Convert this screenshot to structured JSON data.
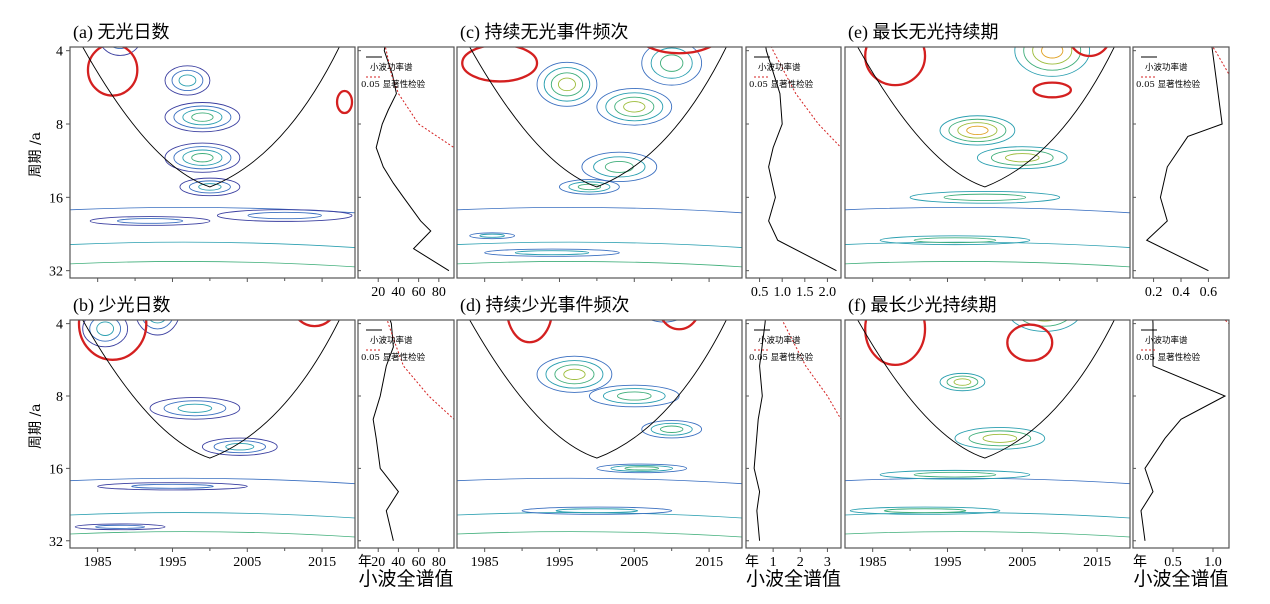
{
  "labels": {
    "ylabel": "周期 /a",
    "xunit": "年",
    "spec_label": "小波全谱值",
    "legend_power": "小波功率谱",
    "legend_sig": "0.05 显著性检验"
  },
  "colors": {
    "sig": "#d42020",
    "coi": "#000000",
    "contours": [
      "#3b3fa0",
      "#3a6fc0",
      "#2a9fb0",
      "#3fae7a",
      "#9cbc3a",
      "#e0a020"
    ]
  },
  "chart_data": [
    {
      "type": "contour",
      "id": "a",
      "title": "(a) 无光日数",
      "xlim": [
        1981.3,
        2019.4
      ],
      "xticks": [
        1985,
        1995,
        2005,
        2015
      ],
      "yticks": [
        4,
        8,
        16,
        32
      ],
      "blobs": [
        [
          1996,
          3,
          4,
          0.35,
          3
        ],
        [
          1988,
          3.4,
          3,
          0.3,
          2
        ],
        [
          1997,
          5.3,
          3,
          0.2,
          2
        ],
        [
          1999,
          7.5,
          5,
          0.2,
          3
        ],
        [
          1999,
          11,
          5,
          0.2,
          3
        ],
        [
          2000,
          14.5,
          4,
          0.12,
          2
        ],
        [
          1992,
          20,
          8,
          0.06,
          1
        ],
        [
          2010,
          19,
          9,
          0.08,
          1
        ]
      ],
      "sig": [
        [
          1987,
          4.8,
          3.3,
          0.35
        ],
        [
          2003,
          2.5,
          2,
          0.2
        ],
        [
          2017,
          2.3,
          2,
          0.2
        ],
        [
          2018,
          6.5,
          1,
          0.15
        ]
      ],
      "spec_xlim": [
        0,
        95
      ],
      "spec_xticks": [
        20,
        40,
        60,
        80
      ],
      "spectrum": [
        [
          2,
          33
        ],
        [
          3,
          30
        ],
        [
          4,
          26
        ],
        [
          5,
          34
        ],
        [
          6,
          38
        ],
        [
          7,
          30
        ],
        [
          8,
          24
        ],
        [
          10,
          18
        ],
        [
          12,
          25
        ],
        [
          14,
          35
        ],
        [
          16,
          45
        ],
        [
          20,
          62
        ],
        [
          22,
          72
        ],
        [
          26,
          55
        ],
        [
          32,
          90
        ]
      ],
      "significance": [
        [
          2,
          12
        ],
        [
          3,
          20
        ],
        [
          4,
          28
        ],
        [
          5,
          33
        ],
        [
          6,
          40
        ],
        [
          8,
          60
        ],
        [
          10,
          95
        ]
      ]
    },
    {
      "type": "contour",
      "id": "c",
      "title": "(c) 持续无光事件频次",
      "xlim": [
        1981.3,
        2019.4
      ],
      "xticks": [
        1985,
        1995,
        2005,
        2015
      ],
      "yticks": [
        4,
        8,
        16,
        32
      ],
      "blobs": [
        [
          1996,
          5.5,
          4,
          0.3,
          3
        ],
        [
          2005,
          6.8,
          5,
          0.25,
          3
        ],
        [
          2010,
          4.5,
          4,
          0.3,
          2
        ],
        [
          2003,
          12,
          5,
          0.2,
          2
        ],
        [
          1999,
          14.5,
          4,
          0.1,
          2
        ],
        [
          1986,
          23,
          3,
          0.04,
          1
        ],
        [
          1994,
          27,
          9,
          0.05,
          1
        ]
      ],
      "sig": [
        [
          1987,
          4.5,
          5,
          0.25
        ],
        [
          2011,
          3,
          7,
          0.45
        ],
        [
          1984,
          2.3,
          1.5,
          0.12
        ]
      ],
      "spec_xlim": [
        0.2,
        2.3
      ],
      "spec_xticks": [
        0.5,
        1.0,
        1.5,
        2.0
      ],
      "spectrum": [
        [
          2,
          0.45
        ],
        [
          3,
          0.55
        ],
        [
          4,
          0.65
        ],
        [
          6,
          0.95
        ],
        [
          8,
          1.0
        ],
        [
          10,
          0.8
        ],
        [
          12,
          0.7
        ],
        [
          16,
          0.85
        ],
        [
          20,
          0.7
        ],
        [
          24,
          0.9
        ],
        [
          32,
          2.2
        ]
      ],
      "significance": [
        [
          2,
          0.3
        ],
        [
          3,
          0.5
        ],
        [
          4,
          0.8
        ],
        [
          6,
          1.3
        ],
        [
          8,
          1.8
        ],
        [
          10,
          2.3
        ]
      ]
    },
    {
      "type": "contour",
      "id": "e",
      "title": "(e) 最长无光持续期",
      "xlim": [
        1981.3,
        2019.4
      ],
      "xticks": [
        1985,
        1995,
        2005,
        2015
      ],
      "yticks": [
        4,
        8,
        16,
        32
      ],
      "blobs": [
        [
          1994,
          3,
          4,
          0.35,
          3
        ],
        [
          2009,
          4,
          5,
          0.35,
          3
        ],
        [
          1999,
          8.5,
          5,
          0.2,
          3
        ],
        [
          2005,
          11,
          6,
          0.15,
          2
        ],
        [
          2000,
          16,
          10,
          0.08,
          1
        ],
        [
          1996,
          24,
          10,
          0.06,
          1
        ]
      ],
      "sig": [
        [
          1988,
          4.2,
          4,
          0.4
        ],
        [
          2009,
          5.8,
          2.5,
          0.1
        ],
        [
          2014,
          3.3,
          3,
          0.35
        ]
      ],
      "spec_xlim": [
        0.05,
        0.75
      ],
      "spec_xticks": [
        0.2,
        0.4,
        0.6
      ],
      "spectrum": [
        [
          2,
          0.45
        ],
        [
          3,
          0.6
        ],
        [
          8,
          0.7
        ],
        [
          9,
          0.45
        ],
        [
          12,
          0.3
        ],
        [
          16,
          0.25
        ],
        [
          20,
          0.3
        ],
        [
          24,
          0.15
        ],
        [
          32,
          0.6
        ]
      ],
      "significance": [
        [
          2,
          0.3
        ],
        [
          3,
          0.5
        ],
        [
          4,
          0.65
        ],
        [
          5,
          0.75
        ]
      ]
    },
    {
      "type": "contour",
      "id": "b",
      "title": "(b) 少光日数",
      "xlim": [
        1981.3,
        2019.4
      ],
      "xticks": [
        1985,
        1995,
        2005,
        2015
      ],
      "yticks": [
        4,
        8,
        16,
        32
      ],
      "blobs": [
        [
          1993,
          3.5,
          3,
          0.35,
          3
        ],
        [
          2002,
          3,
          2,
          0.3,
          2
        ],
        [
          2009,
          3,
          2,
          0.3,
          2
        ],
        [
          1986,
          4.2,
          3,
          0.25,
          2
        ],
        [
          1998,
          9,
          6,
          0.15,
          2
        ],
        [
          2004,
          13,
          5,
          0.12,
          2
        ],
        [
          1995,
          19,
          10,
          0.05,
          1
        ],
        [
          1988,
          28,
          6,
          0.04,
          1
        ]
      ],
      "sig": [
        [
          1987,
          4,
          4.5,
          0.5
        ],
        [
          2000,
          2.5,
          3.5,
          0.3
        ],
        [
          2014,
          3,
          3.5,
          0.45
        ]
      ],
      "spec_xlim": [
        0,
        95
      ],
      "spec_xticks": [
        20,
        40,
        60,
        80
      ],
      "spectrum": [
        [
          2,
          20
        ],
        [
          3,
          23
        ],
        [
          4,
          33
        ],
        [
          5,
          35
        ],
        [
          6,
          28
        ],
        [
          8,
          22
        ],
        [
          10,
          15
        ],
        [
          12,
          18
        ],
        [
          16,
          22
        ],
        [
          20,
          40
        ],
        [
          24,
          28
        ],
        [
          32,
          35
        ]
      ],
      "significance": [
        [
          2,
          12
        ],
        [
          3,
          22
        ],
        [
          4,
          30
        ],
        [
          5,
          38
        ],
        [
          6,
          45
        ],
        [
          8,
          70
        ],
        [
          10,
          95
        ]
      ]
    },
    {
      "type": "contour",
      "id": "d",
      "title": "(d) 持续少光事件频次",
      "xlim": [
        1981.3,
        2019.4
      ],
      "xticks": [
        1985,
        1995,
        2005,
        2015
      ],
      "yticks": [
        4,
        8,
        16,
        32
      ],
      "blobs": [
        [
          1994,
          3,
          3,
          0.3,
          2
        ],
        [
          2009,
          3.2,
          4,
          0.3,
          3
        ],
        [
          1997,
          6.5,
          5,
          0.25,
          3
        ],
        [
          2005,
          8,
          6,
          0.15,
          2
        ],
        [
          2010,
          11,
          4,
          0.12,
          2
        ],
        [
          2006,
          16,
          6,
          0.06,
          2
        ],
        [
          2000,
          24,
          10,
          0.05,
          1
        ]
      ],
      "sig": [
        [
          1991,
          3.5,
          3,
          0.45
        ],
        [
          2011,
          3.2,
          3,
          0.4
        ],
        [
          2000,
          2.3,
          8,
          0.1
        ]
      ],
      "spec_xlim": [
        0,
        3.5
      ],
      "spec_xticks": [
        1,
        2,
        3
      ],
      "spectrum": [
        [
          2,
          0.6
        ],
        [
          3,
          0.8
        ],
        [
          4,
          0.7
        ],
        [
          6,
          0.5
        ],
        [
          8,
          0.6
        ],
        [
          10,
          0.45
        ],
        [
          16,
          0.3
        ],
        [
          20,
          0.5
        ],
        [
          24,
          0.4
        ],
        [
          32,
          0.5
        ]
      ],
      "significance": [
        [
          2,
          0.4
        ],
        [
          3,
          0.9
        ],
        [
          4,
          1.4
        ],
        [
          6,
          2.2
        ],
        [
          8,
          3.0
        ],
        [
          10,
          3.5
        ]
      ]
    },
    {
      "type": "contour",
      "id": "f",
      "title": "(f) 最长少光持续期",
      "xlim": [
        1981.3,
        2019.4
      ],
      "xticks": [
        1985,
        1995,
        2005,
        2015
      ],
      "yticks": [
        4,
        8,
        16,
        32
      ],
      "blobs": [
        [
          1995,
          3,
          3,
          0.3,
          3
        ],
        [
          2008,
          3.5,
          5,
          0.3,
          3
        ],
        [
          1997,
          7,
          3,
          0.12,
          2
        ],
        [
          2015,
          3,
          2,
          0.2,
          3
        ],
        [
          2002,
          12,
          6,
          0.15,
          2
        ],
        [
          1996,
          17,
          10,
          0.06,
          1
        ],
        [
          1992,
          24,
          10,
          0.05,
          1
        ]
      ],
      "sig": [
        [
          1988,
          4.2,
          4,
          0.5
        ],
        [
          2006,
          4.8,
          3,
          0.25
        ],
        [
          2016,
          3,
          1,
          0.08
        ]
      ],
      "spec_xlim": [
        0,
        1.2
      ],
      "spec_xticks": [
        0.5,
        1.0
      ],
      "spectrum": [
        [
          2,
          0.2
        ],
        [
          4,
          0.25
        ],
        [
          6,
          0.25
        ],
        [
          8,
          1.15
        ],
        [
          10,
          0.6
        ],
        [
          12,
          0.4
        ],
        [
          16,
          0.15
        ],
        [
          20,
          0.25
        ],
        [
          24,
          0.1
        ],
        [
          32,
          0.15
        ]
      ],
      "significance": [
        [
          2,
          0.4
        ],
        [
          3,
          0.8
        ],
        [
          4,
          1.2
        ]
      ]
    }
  ]
}
